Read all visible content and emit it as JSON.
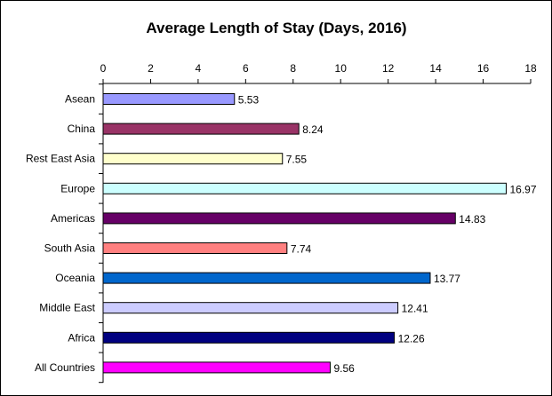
{
  "chart_data": {
    "type": "bar",
    "orientation": "horizontal",
    "title": "Average Length of Stay (Days, 2016)",
    "xlabel": "",
    "ylabel": "",
    "xlim": [
      0,
      18
    ],
    "x_ticks": [
      0,
      2,
      4,
      6,
      8,
      10,
      12,
      14,
      16,
      18
    ],
    "x_axis_position": "top",
    "grid": false,
    "legend": "none",
    "categories": [
      "Asean",
      "China",
      "Rest East Asia",
      "Europe",
      "Americas",
      "South Asia",
      "Oceania",
      "Middle East",
      "Africa",
      "All Countries"
    ],
    "values": [
      5.53,
      8.24,
      7.55,
      16.97,
      14.83,
      7.74,
      13.77,
      12.41,
      12.26,
      9.56
    ],
    "value_labels": [
      "5.53",
      "8.24",
      "7.55",
      "16.97",
      "14.83",
      "7.74",
      "13.77",
      "12.41",
      "12.26",
      "9.56"
    ],
    "colors": [
      "#9999ff",
      "#993366",
      "#ffffcc",
      "#ccffff",
      "#660066",
      "#ff8080",
      "#0066cc",
      "#ccccff",
      "#000080",
      "#ff00ff"
    ]
  }
}
